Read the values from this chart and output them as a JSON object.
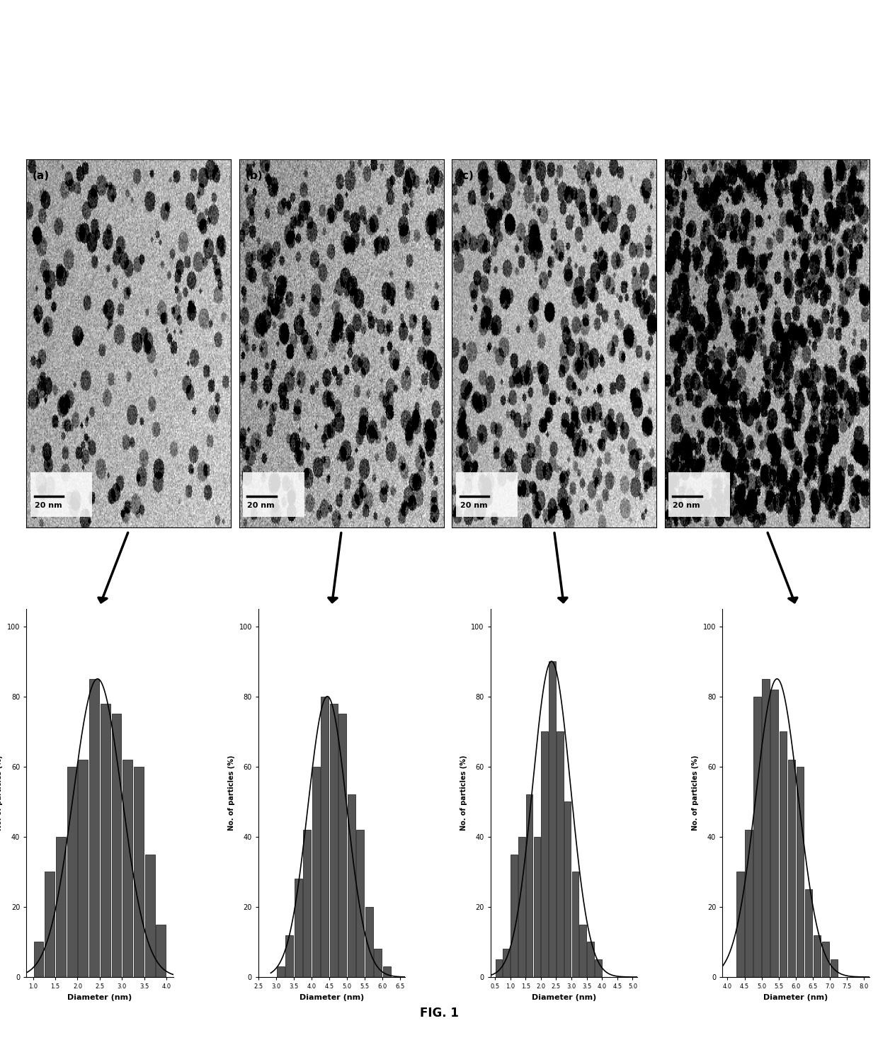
{
  "figure_caption": "FIG. 1",
  "panels": [
    "(a)",
    "(b)",
    "(c)",
    "(d)"
  ],
  "scale_bar_text": "20 nm",
  "background_color": "#ffffff",
  "bar_color": "#555555",
  "bar_edgecolor": "#111111",
  "curve_color": "#000000",
  "tem_images": [
    {
      "noise_seed": 42,
      "dot_density": 0.003,
      "base_gray": 155,
      "noise_std": 20
    },
    {
      "noise_seed": 43,
      "dot_density": 0.005,
      "base_gray": 148,
      "noise_std": 22
    },
    {
      "noise_seed": 44,
      "dot_density": 0.006,
      "base_gray": 160,
      "noise_std": 18
    },
    {
      "noise_seed": 45,
      "dot_density": 0.012,
      "base_gray": 145,
      "noise_std": 20
    }
  ],
  "hist_data": [
    {
      "bars": [
        [
          1.125,
          10
        ],
        [
          1.375,
          30
        ],
        [
          1.625,
          40
        ],
        [
          1.875,
          60
        ],
        [
          2.125,
          62
        ],
        [
          2.375,
          85
        ],
        [
          2.625,
          78
        ],
        [
          2.875,
          75
        ],
        [
          3.125,
          62
        ],
        [
          3.375,
          60
        ],
        [
          3.625,
          35
        ],
        [
          3.875,
          15
        ]
      ],
      "bar_width": 0.22,
      "mean": 2.45,
      "std": 0.55,
      "xlim": [
        0.85,
        4.15
      ],
      "xticks": [
        1.0,
        1.5,
        2.0,
        2.5,
        3.0,
        3.5,
        4.0
      ],
      "yticks": [
        0,
        20,
        40,
        60,
        80,
        100
      ],
      "xlabel": "Diameter (nm)",
      "ylabel": "No. of particles (%)"
    },
    {
      "bars": [
        [
          3.125,
          3
        ],
        [
          3.375,
          12
        ],
        [
          3.625,
          28
        ],
        [
          3.875,
          42
        ],
        [
          4.125,
          60
        ],
        [
          4.375,
          80
        ],
        [
          4.625,
          78
        ],
        [
          4.875,
          75
        ],
        [
          5.125,
          52
        ],
        [
          5.375,
          42
        ],
        [
          5.625,
          20
        ],
        [
          5.875,
          8
        ],
        [
          6.125,
          3
        ]
      ],
      "bar_width": 0.22,
      "mean": 4.45,
      "std": 0.55,
      "xlim": [
        2.85,
        6.65
      ],
      "xticks": [
        2.5,
        3.0,
        3.5,
        4.0,
        4.5,
        5.0,
        5.5,
        6.0,
        6.5
      ],
      "yticks": [
        0,
        20,
        40,
        60,
        80,
        100
      ],
      "xlabel": "Diameter (nm)",
      "ylabel": "No. of particles (%)"
    },
    {
      "bars": [
        [
          0.625,
          5
        ],
        [
          0.875,
          8
        ],
        [
          1.125,
          35
        ],
        [
          1.375,
          40
        ],
        [
          1.625,
          52
        ],
        [
          1.875,
          40
        ],
        [
          2.125,
          70
        ],
        [
          2.375,
          90
        ],
        [
          2.625,
          70
        ],
        [
          2.875,
          50
        ],
        [
          3.125,
          30
        ],
        [
          3.375,
          15
        ],
        [
          3.625,
          10
        ],
        [
          3.875,
          5
        ]
      ],
      "bar_width": 0.22,
      "mean": 2.35,
      "std": 0.62,
      "xlim": [
        0.35,
        5.15
      ],
      "xticks": [
        0.5,
        1.0,
        1.5,
        2.0,
        2.5,
        3.0,
        3.5,
        4.0,
        4.5,
        5.0
      ],
      "yticks": [
        0,
        20,
        40,
        60,
        80,
        100
      ],
      "xlabel": "Diameter (nm)",
      "ylabel": "No. of particles (%)"
    },
    {
      "bars": [
        [
          4.375,
          30
        ],
        [
          4.625,
          42
        ],
        [
          4.875,
          80
        ],
        [
          5.125,
          85
        ],
        [
          5.375,
          82
        ],
        [
          5.625,
          70
        ],
        [
          5.875,
          62
        ],
        [
          6.125,
          60
        ],
        [
          6.375,
          25
        ],
        [
          6.625,
          12
        ],
        [
          6.875,
          10
        ],
        [
          7.125,
          5
        ]
      ],
      "bar_width": 0.22,
      "mean": 5.45,
      "std": 0.62,
      "xlim": [
        3.85,
        8.15
      ],
      "xticks": [
        4.0,
        4.5,
        5.0,
        5.5,
        6.0,
        6.5,
        7.0,
        7.5,
        8.0
      ],
      "yticks": [
        0,
        20,
        40,
        60,
        80,
        100
      ],
      "xlabel": "Diameter (nm)",
      "ylabel": "No. of particles (%)"
    }
  ]
}
